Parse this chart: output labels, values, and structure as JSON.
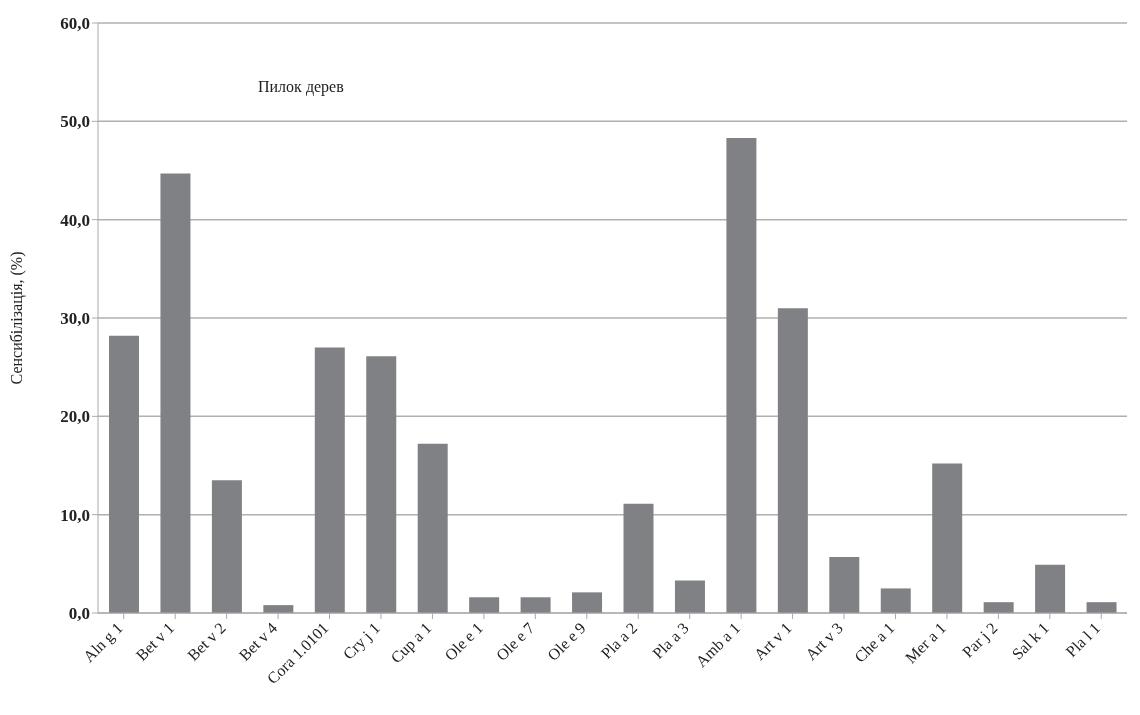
{
  "chart_data": {
    "type": "bar",
    "ylabel": "Сенсибілізація, (%)",
    "annotations": [
      "Пилок дерев"
    ],
    "categories": [
      "Aln g 1",
      "Bet v 1",
      "Bet v 2",
      "Bet v 4",
      "Cora 1.0101",
      "Cry j 1",
      "Cup a 1",
      "Ole e 1",
      "Ole e 7",
      "Ole e 9",
      "Pla a 2",
      "Pla a 3",
      "Amb a 1",
      "Art v 1",
      "Art v 3",
      "Che a 1",
      "Mer a 1",
      "Par j 2",
      "Sal k 1",
      "Pla l 1"
    ],
    "values": [
      28.2,
      44.7,
      13.5,
      0.8,
      27.0,
      26.1,
      17.2,
      1.6,
      1.6,
      2.1,
      11.1,
      3.3,
      48.3,
      31.0,
      5.7,
      2.5,
      15.2,
      1.1,
      4.9,
      1.1
    ],
    "color": "#808184",
    "ylim": [
      0,
      60
    ],
    "yticks": [
      {
        "value": 0,
        "label": "0,0"
      },
      {
        "value": 10,
        "label": "10,0"
      },
      {
        "value": 20,
        "label": "20,0"
      },
      {
        "value": 30,
        "label": "30,0"
      },
      {
        "value": 40,
        "label": "40,0"
      },
      {
        "value": 50,
        "label": "50,0"
      },
      {
        "value": 60,
        "label": "60,0"
      }
    ],
    "grid": "y"
  }
}
